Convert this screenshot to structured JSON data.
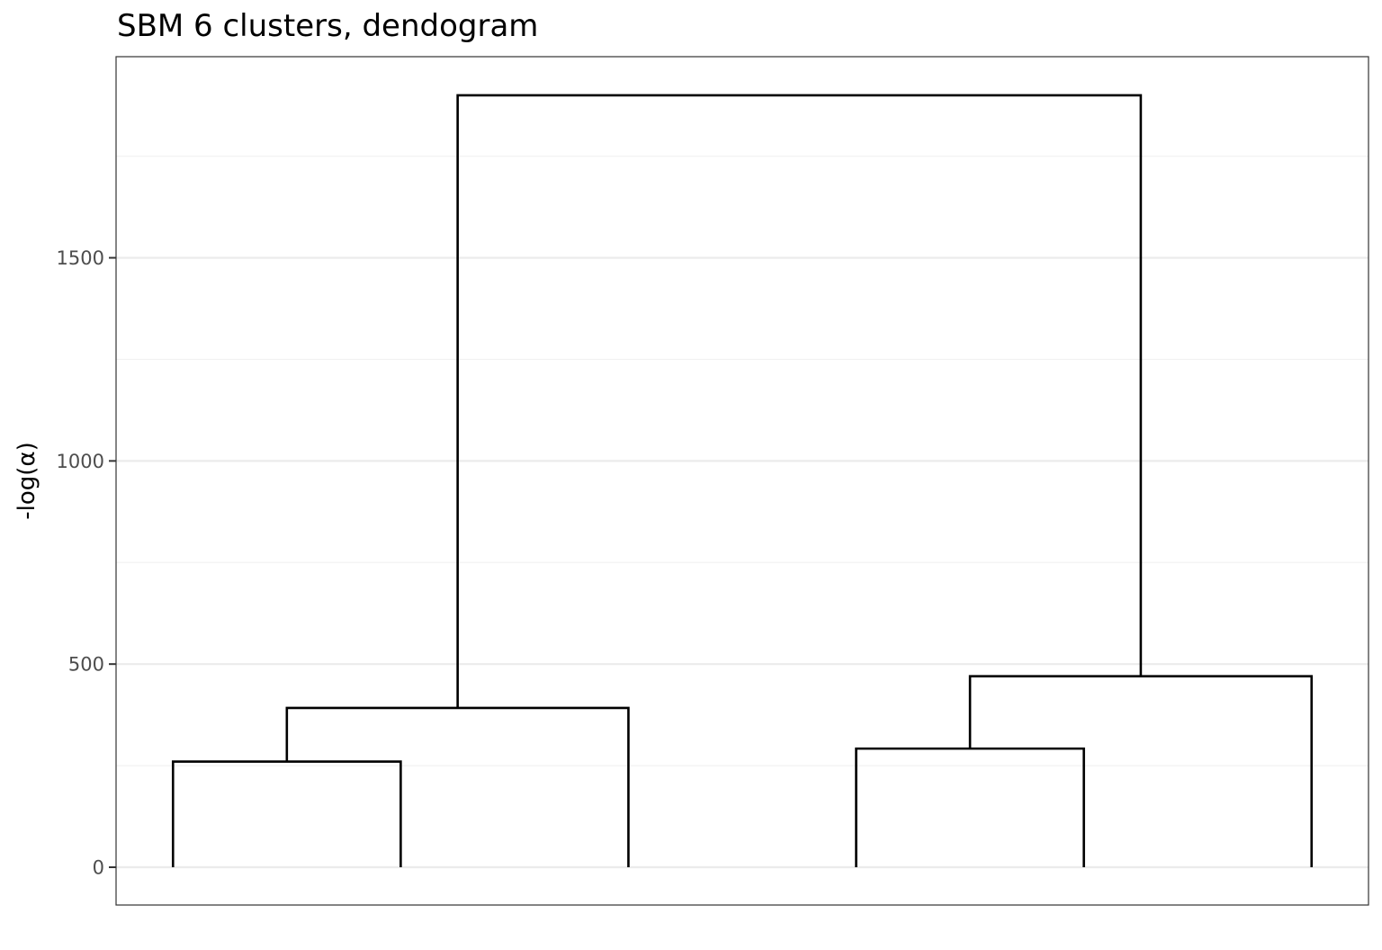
{
  "chart_data": {
    "type": "dendrogram",
    "title": "SBM 6 clusters, dendogram",
    "xlabel": "",
    "ylabel": "-log(α)",
    "ylim": [
      -93,
      1995
    ],
    "yticks": [
      0,
      500,
      1000,
      1500
    ],
    "ytick_labels": [
      "0",
      "500",
      "1000",
      "1500"
    ],
    "grid": true,
    "leaves": [
      1,
      2,
      3,
      4,
      5,
      6
    ],
    "links": [
      {
        "name": "merge-leaf1-leaf2",
        "left_x": 1,
        "right_x": 2,
        "left_y": 0,
        "right_y": 0,
        "height": 260
      },
      {
        "name": "merge-12-leaf3",
        "left_x": 1.5,
        "right_x": 3,
        "left_y": 260,
        "right_y": 0,
        "height": 392
      },
      {
        "name": "merge-leaf4-leaf5",
        "left_x": 4,
        "right_x": 5,
        "left_y": 0,
        "right_y": 0,
        "height": 292
      },
      {
        "name": "merge-45-leaf6",
        "left_x": 4.5,
        "right_x": 6,
        "left_y": 292,
        "right_y": 0,
        "height": 470
      },
      {
        "name": "merge-root",
        "left_x": 2.25,
        "right_x": 5.25,
        "left_y": 392,
        "right_y": 470,
        "height": 1900
      }
    ],
    "colors": {
      "line": "#000000",
      "grid_major": "#ebebeb",
      "grid_minor": "#f2f2f2",
      "panel_border": "#333333",
      "tick_text": "#4d4d4d"
    }
  }
}
